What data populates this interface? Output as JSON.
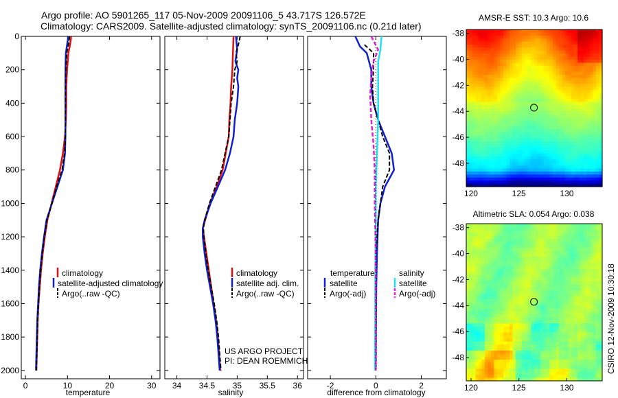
{
  "header": {
    "title_line1": "Argo profile: AO 5901265_117 05-Nov-2009 20091106_5 43.717S 126.572E",
    "title_line2": "Climatology: CARS2009. Satellite-adjusted climatology: synTS_20091106.nc (0.21d later)"
  },
  "colors": {
    "climatology": "#e01010",
    "satellite": "#1020d0",
    "argo": "#000000",
    "satellite_sal": "#20e0f0",
    "argo_sal": "#e020d0"
  },
  "chart_data": [
    {
      "id": "temperature",
      "type": "line",
      "xlabel": "temperature",
      "xlim": [
        -1,
        32
      ],
      "xticks": [
        0,
        10,
        20,
        30
      ],
      "ylim": [
        0,
        2050
      ],
      "yticks": [
        0,
        200,
        400,
        600,
        800,
        1000,
        1200,
        1400,
        1600,
        1800,
        2000
      ],
      "legend": [
        "climatology",
        "satellite-adjusted climatology",
        "Argo(..raw -QC)"
      ],
      "series": [
        {
          "name": "climatology",
          "color": "#e01010",
          "dash": false,
          "width": 2.5,
          "points": [
            [
              10.9,
              0
            ],
            [
              10.6,
              50
            ],
            [
              10.2,
              100
            ],
            [
              9.9,
              200
            ],
            [
              9.7,
              300
            ],
            [
              9.7,
              400
            ],
            [
              9.6,
              500
            ],
            [
              9.4,
              600
            ],
            [
              8.9,
              700
            ],
            [
              8.2,
              800
            ],
            [
              7.2,
              900
            ],
            [
              6.2,
              1000
            ],
            [
              5.2,
              1100
            ],
            [
              4.6,
              1200
            ],
            [
              4.1,
              1300
            ],
            [
              3.7,
              1400
            ],
            [
              3.4,
              1500
            ],
            [
              3.1,
              1600
            ],
            [
              2.9,
              1700
            ],
            [
              2.8,
              1800
            ],
            [
              2.7,
              1900
            ],
            [
              2.6,
              2000
            ]
          ]
        },
        {
          "name": "satellite-adjusted climatology",
          "color": "#1020d0",
          "dash": false,
          "width": 2.5,
          "points": [
            [
              10.2,
              0
            ],
            [
              9.9,
              50
            ],
            [
              9.6,
              100
            ],
            [
              9.5,
              200
            ],
            [
              9.5,
              300
            ],
            [
              9.5,
              400
            ],
            [
              9.5,
              500
            ],
            [
              9.5,
              600
            ],
            [
              9.4,
              700
            ],
            [
              8.9,
              800
            ],
            [
              7.6,
              900
            ],
            [
              6.3,
              1000
            ],
            [
              5.0,
              1100
            ],
            [
              4.4,
              1200
            ],
            [
              3.9,
              1300
            ],
            [
              3.5,
              1400
            ],
            [
              3.2,
              1500
            ],
            [
              3.0,
              1600
            ],
            [
              2.8,
              1700
            ],
            [
              2.7,
              1800
            ],
            [
              2.6,
              1900
            ],
            [
              2.5,
              2000
            ]
          ]
        },
        {
          "name": "Argo(..raw -QC)",
          "color": "#000000",
          "dash": true,
          "width": 2,
          "points": [
            [
              10.5,
              0
            ],
            [
              10.2,
              50
            ],
            [
              9.8,
              100
            ],
            [
              9.6,
              200
            ],
            [
              9.5,
              300
            ],
            [
              9.5,
              400
            ],
            [
              9.5,
              500
            ],
            [
              9.5,
              600
            ],
            [
              9.3,
              700
            ],
            [
              8.7,
              800
            ],
            [
              7.4,
              900
            ],
            [
              6.3,
              1000
            ],
            [
              5.1,
              1100
            ],
            [
              4.5,
              1200
            ],
            [
              4.0,
              1300
            ],
            [
              3.6,
              1400
            ],
            [
              3.3,
              1500
            ],
            [
              3.1,
              1600
            ],
            [
              2.9,
              1700
            ],
            [
              2.8,
              1800
            ],
            [
              2.7,
              1900
            ],
            [
              2.6,
              2000
            ]
          ]
        }
      ]
    },
    {
      "id": "salinity",
      "type": "line",
      "xlabel": "salinity",
      "xlim": [
        33.8,
        36.1
      ],
      "xticks": [
        34,
        34.5,
        35,
        35.5,
        36
      ],
      "ylim": [
        0,
        2050
      ],
      "yticks": [
        0,
        200,
        400,
        600,
        800,
        1000,
        1200,
        1400,
        1600,
        1800,
        2000
      ],
      "legend": [
        "climatology",
        "satellite adj. clim.",
        "Argo(..raw -QC)"
      ],
      "annotation": [
        "US ARGO PROJECT",
        "PI: DEAN ROEMMICH"
      ],
      "series": [
        {
          "name": "climatology",
          "color": "#e01010",
          "dash": false,
          "width": 2.5,
          "points": [
            [
              34.94,
              0
            ],
            [
              34.93,
              100
            ],
            [
              34.92,
              200
            ],
            [
              34.9,
              300
            ],
            [
              34.89,
              400
            ],
            [
              34.87,
              500
            ],
            [
              34.86,
              600
            ],
            [
              34.81,
              700
            ],
            [
              34.76,
              800
            ],
            [
              34.66,
              900
            ],
            [
              34.55,
              1000
            ],
            [
              34.47,
              1100
            ],
            [
              34.43,
              1150
            ],
            [
              34.45,
              1200
            ],
            [
              34.49,
              1300
            ],
            [
              34.53,
              1400
            ],
            [
              34.57,
              1500
            ],
            [
              34.61,
              1600
            ],
            [
              34.65,
              1700
            ],
            [
              34.68,
              1800
            ],
            [
              34.7,
              1900
            ],
            [
              34.72,
              2000
            ]
          ]
        },
        {
          "name": "satellite adj. clim.",
          "color": "#1020d0",
          "dash": false,
          "width": 2.5,
          "points": [
            [
              34.98,
              0
            ],
            [
              35.0,
              80
            ],
            [
              34.97,
              150
            ],
            [
              35.02,
              200
            ],
            [
              35.0,
              250
            ],
            [
              35.02,
              300
            ],
            [
              35.0,
              400
            ],
            [
              34.96,
              500
            ],
            [
              34.94,
              600
            ],
            [
              34.88,
              700
            ],
            [
              34.8,
              800
            ],
            [
              34.68,
              900
            ],
            [
              34.56,
              1000
            ],
            [
              34.46,
              1100
            ],
            [
              34.43,
              1150
            ],
            [
              34.43,
              1200
            ],
            [
              34.46,
              1300
            ],
            [
              34.5,
              1400
            ],
            [
              34.55,
              1500
            ],
            [
              34.6,
              1600
            ],
            [
              34.64,
              1700
            ],
            [
              34.67,
              1800
            ],
            [
              34.69,
              1900
            ],
            [
              34.71,
              2000
            ]
          ]
        },
        {
          "name": "Argo(..raw -QC)",
          "color": "#000000",
          "dash": true,
          "width": 2,
          "points": [
            [
              35.05,
              0
            ],
            [
              35.02,
              50
            ],
            [
              34.98,
              100
            ],
            [
              35.0,
              150
            ],
            [
              34.96,
              200
            ],
            [
              34.94,
              300
            ],
            [
              34.9,
              400
            ],
            [
              34.88,
              500
            ],
            [
              34.86,
              600
            ],
            [
              34.8,
              700
            ],
            [
              34.74,
              800
            ],
            [
              34.64,
              900
            ],
            [
              34.54,
              1000
            ],
            [
              34.46,
              1100
            ],
            [
              34.44,
              1150
            ],
            [
              34.45,
              1200
            ],
            [
              34.48,
              1300
            ],
            [
              34.52,
              1400
            ],
            [
              34.57,
              1500
            ],
            [
              34.62,
              1600
            ],
            [
              34.66,
              1700
            ],
            [
              34.69,
              1800
            ],
            [
              34.71,
              1900
            ],
            [
              34.73,
              2000
            ]
          ]
        }
      ]
    },
    {
      "id": "difference",
      "type": "line",
      "xlabel": "difference from climatology",
      "xlim": [
        -3,
        3.1
      ],
      "xticks": [
        -2,
        0,
        2
      ],
      "ylim": [
        0,
        2050
      ],
      "yticks": [
        0,
        200,
        400,
        600,
        800,
        1000,
        1200,
        1400,
        1600,
        1800,
        2000
      ],
      "legend_left_title": "temperature",
      "legend_right_title": "salinity",
      "legend_left": [
        "satellite",
        "Argo(-adj)"
      ],
      "legend_right": [
        "satellite",
        "Argo(-adj)"
      ],
      "series": [
        {
          "name": "temperature satellite",
          "color": "#1020d0",
          "dash": false,
          "width": 2.5,
          "points": [
            [
              -0.9,
              0
            ],
            [
              -0.7,
              60
            ],
            [
              -0.4,
              100
            ],
            [
              -0.2,
              200
            ],
            [
              -0.2,
              300
            ],
            [
              -0.1,
              400
            ],
            [
              0.1,
              500
            ],
            [
              0.4,
              600
            ],
            [
              0.7,
              700
            ],
            [
              0.8,
              800
            ],
            [
              0.4,
              900
            ],
            [
              0.2,
              1000
            ],
            [
              0.1,
              1100
            ],
            [
              0.05,
              1300
            ],
            [
              0.02,
              1500
            ],
            [
              0.01,
              1700
            ],
            [
              0.0,
              2000
            ]
          ]
        },
        {
          "name": "temperature Argo(-adj)",
          "color": "#000000",
          "dash": true,
          "width": 2,
          "points": [
            [
              -0.5,
              50
            ],
            [
              -0.1,
              100
            ],
            [
              -0.1,
              200
            ],
            [
              -0.15,
              300
            ],
            [
              -0.1,
              400
            ],
            [
              0.1,
              500
            ],
            [
              0.3,
              600
            ],
            [
              0.6,
              700
            ],
            [
              0.6,
              800
            ],
            [
              0.3,
              900
            ],
            [
              0.2,
              1000
            ],
            [
              0.1,
              1100
            ],
            [
              0.0,
              1300
            ],
            [
              0.0,
              1500
            ],
            [
              -0.02,
              1800
            ],
            [
              -0.02,
              2000
            ]
          ]
        },
        {
          "name": "salinity satellite",
          "color": "#20e0f0",
          "dash": false,
          "width": 2.5,
          "points": [
            [
              0.25,
              0
            ],
            [
              0.2,
              80
            ],
            [
              0.1,
              150
            ],
            [
              0.1,
              300
            ],
            [
              0.1,
              500
            ],
            [
              0.05,
              700
            ],
            [
              0.0,
              900
            ],
            [
              0.0,
              1100
            ],
            [
              -0.02,
              1300
            ],
            [
              -0.03,
              1500
            ],
            [
              -0.03,
              1700
            ],
            [
              -0.04,
              1900
            ],
            [
              -0.04,
              2000
            ]
          ]
        },
        {
          "name": "salinity Argo(-adj)",
          "color": "#e020d0",
          "dash": true,
          "width": 2.5,
          "points": [
            [
              -0.2,
              0
            ],
            [
              0.1,
              80
            ],
            [
              -0.1,
              150
            ],
            [
              -0.2,
              250
            ],
            [
              -0.25,
              350
            ],
            [
              -0.2,
              500
            ],
            [
              -0.1,
              650
            ],
            [
              -0.05,
              800
            ],
            [
              -0.05,
              1000
            ],
            [
              -0.02,
              1200
            ],
            [
              0.0,
              1500
            ],
            [
              0.0,
              2000
            ]
          ]
        },
        {
          "name": "zero line",
          "color": "#000000",
          "dash": "dot",
          "width": 1,
          "points": [
            [
              0,
              0
            ],
            [
              0,
              2000
            ]
          ]
        }
      ]
    },
    {
      "id": "sst_map",
      "type": "heatmap",
      "title": "AMSR-E SST: 10.3 Argo: 10.6",
      "xlim": [
        119.5,
        133.7
      ],
      "ylim": [
        -49.8,
        -37.7
      ],
      "xticks": [
        120,
        125,
        130
      ],
      "yticks": [
        -38,
        -40,
        -42,
        -44,
        -46,
        -48
      ],
      "marker": [
        126.572,
        -43.717
      ]
    },
    {
      "id": "sla_map",
      "type": "heatmap",
      "title": "Altimetric SLA: 0.054 Argo: 0.038",
      "xlim": [
        119.5,
        133.7
      ],
      "ylim": [
        -49.8,
        -37.7
      ],
      "xticks": [
        120,
        125,
        130
      ],
      "yticks": [
        -38,
        -40,
        -42,
        -44,
        -46,
        -48
      ],
      "marker": [
        126.572,
        -43.717
      ],
      "side_label": "CSIRO 12-Nov-2009 10:30:18"
    }
  ]
}
